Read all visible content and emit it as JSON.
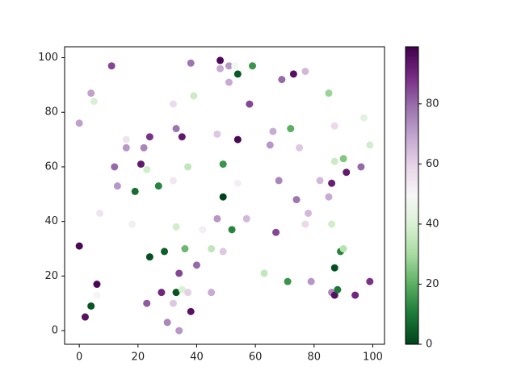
{
  "chart_data": {
    "type": "scatter",
    "x": [
      0,
      0,
      2,
      4,
      4,
      5,
      6,
      6,
      7,
      11,
      12,
      13,
      16,
      16,
      18,
      19,
      21,
      22,
      23,
      23,
      24,
      24,
      27,
      28,
      29,
      30,
      32,
      32,
      32,
      33,
      33,
      33,
      34,
      34,
      35,
      35,
      36,
      37,
      37,
      38,
      38,
      39,
      40,
      42,
      45,
      45,
      47,
      47,
      48,
      48,
      49,
      49,
      49,
      51,
      51,
      52,
      53,
      54,
      54,
      54,
      57,
      58,
      59,
      63,
      65,
      66,
      67,
      68,
      69,
      71,
      72,
      73,
      74,
      75,
      77,
      77,
      78,
      79,
      82,
      85,
      85,
      86,
      86,
      86,
      87,
      87,
      87,
      87,
      88,
      89,
      90,
      90,
      91,
      94,
      96,
      97,
      99,
      99
    ],
    "y": [
      76,
      31,
      5,
      9,
      87,
      84,
      17,
      13,
      43,
      97,
      60,
      53,
      70,
      67,
      39,
      51,
      61,
      67,
      59,
      10,
      71,
      27,
      53,
      14,
      29,
      3,
      83,
      55,
      10,
      74,
      38,
      14,
      21,
      0,
      71,
      15,
      30,
      60,
      14,
      7,
      98,
      86,
      24,
      37,
      30,
      14,
      41,
      72,
      96,
      99,
      61,
      49,
      29,
      97,
      91,
      37,
      97,
      94,
      70,
      54,
      41,
      83,
      97,
      21,
      68,
      73,
      36,
      55,
      92,
      18,
      74,
      94,
      48,
      67,
      95,
      39,
      43,
      18,
      55,
      87,
      49,
      54,
      39,
      14,
      75,
      62,
      23,
      13,
      15,
      29,
      63,
      30,
      58,
      13,
      60,
      78,
      68,
      18
    ],
    "c": [
      70,
      97,
      95,
      3,
      70,
      40,
      97,
      50,
      55,
      85,
      80,
      72,
      55,
      72,
      52,
      8,
      93,
      75,
      38,
      82,
      88,
      2,
      12,
      90,
      5,
      75,
      57,
      54,
      62,
      78,
      38,
      3,
      85,
      72,
      93,
      40,
      22,
      35,
      60,
      95,
      78,
      37,
      80,
      52,
      35,
      68,
      72,
      62,
      68,
      97,
      15,
      0,
      62,
      72,
      68,
      12,
      48,
      4,
      97,
      52,
      65,
      85,
      15,
      35,
      72,
      68,
      85,
      75,
      80,
      15,
      20,
      95,
      78,
      62,
      65,
      58,
      65,
      72,
      65,
      28,
      68,
      92,
      38,
      75,
      58,
      37,
      2,
      95,
      10,
      12,
      25,
      33,
      93,
      90,
      80,
      43,
      38,
      88
    ],
    "colormap": [
      "#00441b",
      "#1b7837",
      "#5aae61",
      "#a6dba0",
      "#d9f0d3",
      "#f7f7f7",
      "#e7d4e8",
      "#c2a5cf",
      "#9970ab",
      "#762a83",
      "#40004b"
    ],
    "xlim": [
      -5,
      104
    ],
    "ylim": [
      -5,
      104
    ],
    "clim": [
      0,
      99
    ],
    "xticks": [
      0,
      20,
      40,
      60,
      80,
      100
    ],
    "yticks": [
      0,
      20,
      40,
      60,
      80,
      100
    ],
    "cticks": [
      0,
      20,
      40,
      60,
      80
    ]
  }
}
